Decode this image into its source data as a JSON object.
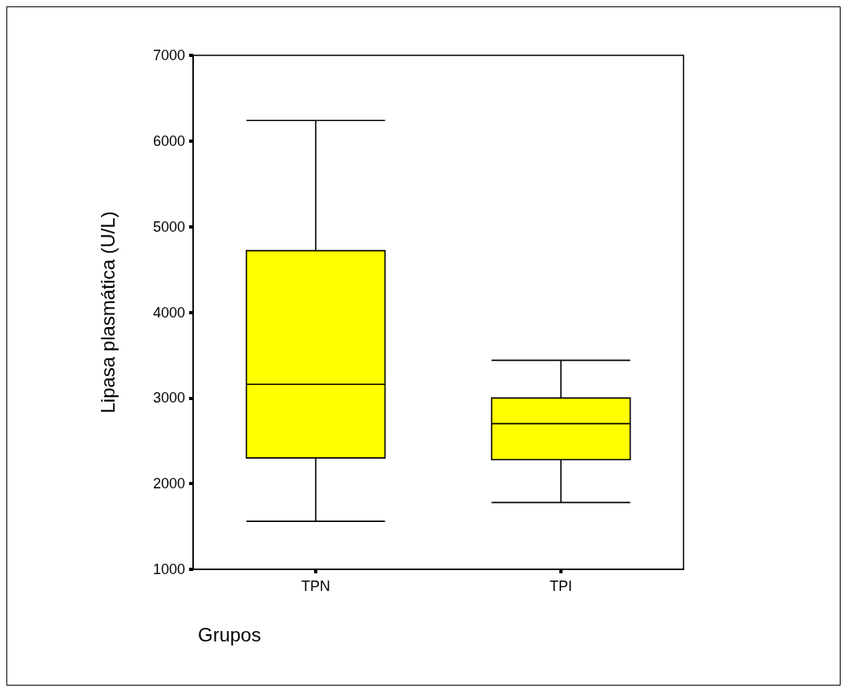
{
  "chart_data": {
    "type": "box",
    "xlabel": "Grupos",
    "ylabel": "Lipasa plasmática (U/L)",
    "categories": [
      "TPN",
      "TPI"
    ],
    "color": "#ffff00",
    "boxes": [
      {
        "low": 1560,
        "q1": 2300,
        "median": 3160,
        "q3": 4720,
        "high": 6240
      },
      {
        "low": 1780,
        "q1": 2280,
        "median": 2700,
        "q3": 3000,
        "high": 3440
      }
    ],
    "ylim": [
      1000,
      7000
    ],
    "yticks": [
      1000,
      2000,
      3000,
      4000,
      5000,
      6000,
      7000
    ]
  }
}
